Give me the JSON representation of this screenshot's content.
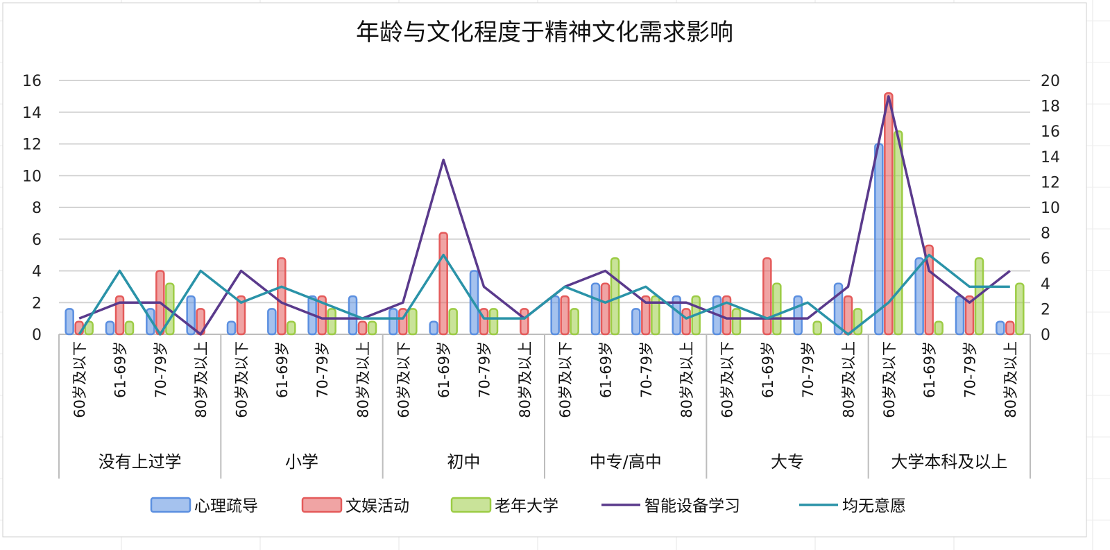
{
  "chart_data": {
    "type": "bar",
    "title": "年龄与文化程度于精神文化需求影响",
    "groups": [
      "没有上过学",
      "小学",
      "初中",
      "中专/高中",
      "大专",
      "大学本科及以上"
    ],
    "subcategories": [
      "60岁及以下",
      "61-69岁",
      "70-79岁",
      "80岁及以上"
    ],
    "left_axis": {
      "ylim": [
        0,
        16
      ],
      "ticks": [
        "0",
        "2",
        "4",
        "6",
        "8",
        "10",
        "12",
        "14",
        "16"
      ]
    },
    "right_axis": {
      "ylim": [
        0,
        20
      ],
      "ticks": [
        "0",
        "2",
        "4",
        "6",
        "8",
        "10",
        "12",
        "14",
        "16",
        "18",
        "20"
      ]
    },
    "grid": true,
    "legend_position": "bottom",
    "series": [
      {
        "name": "心理疏导",
        "kind": "bar",
        "axis": "left",
        "color": "#5b8fe0",
        "values": [
          1.6,
          0.8,
          1.6,
          2.4,
          0.8,
          1.6,
          2.4,
          2.4,
          1.6,
          0.8,
          4.0,
          0,
          2.4,
          3.2,
          1.6,
          2.4,
          2.4,
          0,
          2.4,
          3.2,
          12.0,
          4.8,
          2.4,
          0.8
        ]
      },
      {
        "name": "文娱活动",
        "kind": "bar",
        "axis": "left",
        "color": "#e45a5a",
        "values": [
          0.8,
          2.4,
          4.0,
          1.6,
          2.4,
          4.8,
          2.4,
          0.8,
          1.6,
          6.4,
          1.6,
          1.6,
          2.4,
          3.2,
          2.4,
          1.6,
          2.4,
          4.8,
          0,
          2.4,
          15.2,
          5.6,
          2.4,
          0.8
        ]
      },
      {
        "name": "老年大学",
        "kind": "bar",
        "axis": "left",
        "color": "#9ccc45",
        "values": [
          0.8,
          0.8,
          3.2,
          0,
          0,
          0.8,
          1.6,
          0.8,
          1.6,
          1.6,
          1.6,
          0,
          1.6,
          4.8,
          2.4,
          2.4,
          1.6,
          3.2,
          0.8,
          1.6,
          12.8,
          0.8,
          4.8,
          3.2
        ]
      },
      {
        "name": "智能设备学习",
        "kind": "line",
        "axis": "right",
        "color": "#5a3a8c",
        "values": [
          1.25,
          2.5,
          2.5,
          0,
          5,
          2.5,
          1.25,
          1.25,
          2.5,
          13.75,
          3.75,
          1.25,
          3.75,
          5,
          2.5,
          2.5,
          1.25,
          1.25,
          1.25,
          3.75,
          18.75,
          5,
          2.5,
          5
        ]
      },
      {
        "name": "均无意愿",
        "kind": "line",
        "axis": "right",
        "color": "#2a93a8",
        "values": [
          0,
          5,
          0,
          5,
          2.5,
          3.75,
          2.5,
          1.25,
          1.25,
          6.25,
          1.25,
          1.25,
          3.75,
          2.5,
          3.75,
          1.25,
          2.5,
          1.25,
          2.5,
          0,
          2.5,
          6.25,
          3.75,
          3.75
        ]
      }
    ]
  }
}
